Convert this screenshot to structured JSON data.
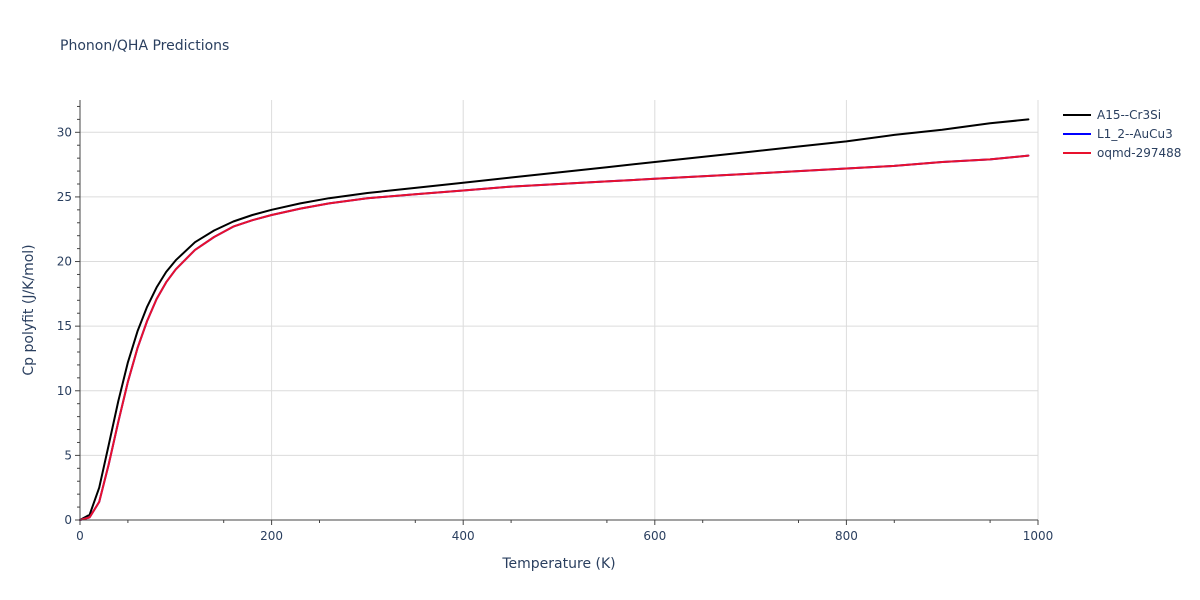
{
  "chart_data": {
    "type": "line",
    "title": "Phonon/QHA Predictions",
    "xlabel": "Temperature (K)",
    "ylabel": "Cp polyfit (J/K/mol)",
    "xlim": [
      0,
      1000
    ],
    "ylim": [
      0,
      32.5
    ],
    "x_ticks": [
      0,
      200,
      400,
      600,
      800,
      1000
    ],
    "y_ticks": [
      0,
      5,
      10,
      15,
      20,
      25,
      30
    ],
    "grid": true,
    "legend_position": "top-right",
    "series": [
      {
        "name": "A15--Cr3Si",
        "color": "#000000",
        "x": [
          0,
          10,
          20,
          30,
          40,
          50,
          60,
          70,
          80,
          90,
          100,
          120,
          140,
          160,
          180,
          200,
          230,
          260,
          300,
          350,
          400,
          450,
          500,
          550,
          600,
          650,
          700,
          750,
          800,
          850,
          900,
          950,
          990
        ],
        "y": [
          0,
          0.4,
          2.5,
          5.8,
          9.2,
          12.2,
          14.6,
          16.5,
          18.0,
          19.2,
          20.1,
          21.5,
          22.4,
          23.1,
          23.6,
          24.0,
          24.5,
          24.9,
          25.3,
          25.7,
          26.1,
          26.5,
          26.9,
          27.3,
          27.7,
          28.1,
          28.5,
          28.9,
          29.3,
          29.8,
          30.2,
          30.7,
          31.0
        ]
      },
      {
        "name": "L1_2--AuCu3",
        "color": "#0000ff",
        "x": [
          0,
          10,
          20,
          30,
          40,
          50,
          60,
          70,
          80,
          90,
          100,
          120,
          140,
          160,
          180,
          200,
          230,
          260,
          300,
          350,
          400,
          450,
          500,
          550,
          600,
          650,
          700,
          750,
          800,
          850,
          900,
          950,
          990
        ],
        "y": [
          0,
          0.2,
          1.4,
          4.3,
          7.6,
          10.7,
          13.3,
          15.4,
          17.1,
          18.4,
          19.4,
          20.9,
          21.9,
          22.7,
          23.2,
          23.6,
          24.1,
          24.5,
          24.9,
          25.2,
          25.5,
          25.8,
          26.0,
          26.2,
          26.4,
          26.6,
          26.8,
          27.0,
          27.2,
          27.4,
          27.7,
          27.9,
          28.2
        ]
      },
      {
        "name": "oqmd-297488",
        "color": "#e8112d",
        "x": [
          0,
          10,
          20,
          30,
          40,
          50,
          60,
          70,
          80,
          90,
          100,
          120,
          140,
          160,
          180,
          200,
          230,
          260,
          300,
          350,
          400,
          450,
          500,
          550,
          600,
          650,
          700,
          750,
          800,
          850,
          900,
          950,
          990
        ],
        "y": [
          0,
          0.2,
          1.4,
          4.3,
          7.6,
          10.7,
          13.3,
          15.4,
          17.1,
          18.4,
          19.4,
          20.9,
          21.9,
          22.7,
          23.2,
          23.6,
          24.1,
          24.5,
          24.9,
          25.2,
          25.5,
          25.8,
          26.0,
          26.2,
          26.4,
          26.6,
          26.8,
          27.0,
          27.2,
          27.4,
          27.7,
          27.9,
          28.2
        ]
      }
    ]
  }
}
